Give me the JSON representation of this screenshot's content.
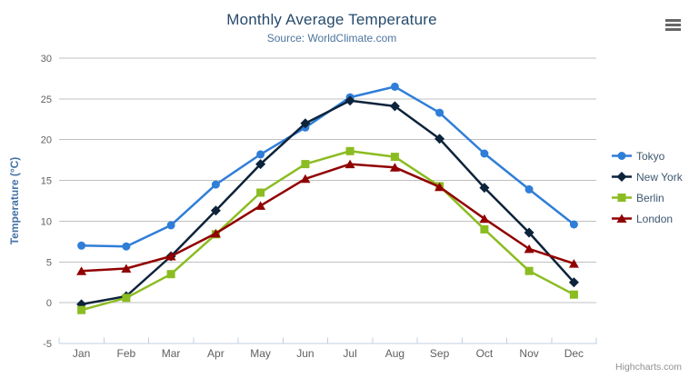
{
  "chart_data": {
    "type": "line",
    "title": "Monthly Average Temperature",
    "subtitle": "Source: WorldClimate.com",
    "categories": [
      "Jan",
      "Feb",
      "Mar",
      "Apr",
      "May",
      "Jun",
      "Jul",
      "Aug",
      "Sep",
      "Oct",
      "Nov",
      "Dec"
    ],
    "xlabel": "",
    "ylabel": "Temperature (°C)",
    "ylim": [
      -5,
      30
    ],
    "yticks": [
      -5,
      0,
      5,
      10,
      15,
      20,
      25,
      30
    ],
    "grid": true,
    "legend_position": "right",
    "series": [
      {
        "name": "Tokyo",
        "color": "#2f7ed8",
        "marker": "circle",
        "values": [
          7.0,
          6.9,
          9.5,
          14.5,
          18.2,
          21.5,
          25.2,
          26.5,
          23.3,
          18.3,
          13.9,
          9.6
        ]
      },
      {
        "name": "New York",
        "color": "#0d233a",
        "marker": "diamond",
        "values": [
          -0.2,
          0.8,
          5.7,
          11.3,
          17.0,
          22.0,
          24.8,
          24.1,
          20.1,
          14.1,
          8.6,
          2.5
        ]
      },
      {
        "name": "Berlin",
        "color": "#8bbc21",
        "marker": "square",
        "values": [
          -0.9,
          0.6,
          3.5,
          8.4,
          13.5,
          17.0,
          18.6,
          17.9,
          14.3,
          9.0,
          3.9,
          1.0
        ]
      },
      {
        "name": "London",
        "color": "#910000",
        "marker": "triangle",
        "values": [
          3.9,
          4.2,
          5.7,
          8.5,
          11.9,
          15.2,
          17.0,
          16.6,
          14.2,
          10.3,
          6.6,
          4.8
        ]
      }
    ]
  },
  "credits": {
    "label": "Highcharts.com"
  },
  "toolbar": {
    "menu_icon": "hamburger-icon"
  },
  "colors": {
    "title": "#274b6d",
    "subtitle": "#4d759e",
    "axis_title": "#4572a7",
    "axis_labels": "#606060",
    "grid": "#c0c0c0",
    "axis_line": "#c0d0e0",
    "legend_text": "#3e576f",
    "credits": "#909090",
    "menu_icon": "#666666",
    "background": "#ffffff"
  }
}
